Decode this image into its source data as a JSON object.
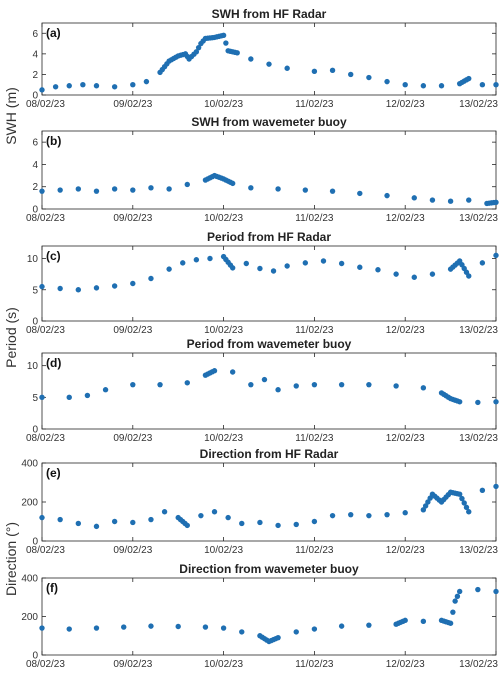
{
  "figure": {
    "ylabels": [
      {
        "text": "SWH (m)",
        "panels": [
          0,
          1
        ]
      },
      {
        "text": "Period (s)",
        "panels": [
          2,
          3
        ]
      },
      {
        "text": "Direction (°)",
        "panels": [
          4,
          5
        ]
      }
    ]
  },
  "chart_data": [
    {
      "type": "scatter",
      "label": "(a)",
      "title": "SWH from HF Radar",
      "x_tick_labels": [
        "08/02/23",
        "09/02/23",
        "10/02/23",
        "11/02/23",
        "12/02/23",
        "13/02/23"
      ],
      "xlim": [
        0,
        5
      ],
      "ylim": [
        0,
        7
      ],
      "yticks": [
        0,
        2,
        4,
        6
      ],
      "color": "#1f6fb2",
      "series": [
        {
          "points": [
            [
              0.0,
              0.5
            ],
            [
              0.15,
              0.8
            ],
            [
              0.3,
              0.9
            ],
            [
              0.45,
              1.0
            ],
            [
              0.6,
              0.9
            ],
            [
              0.8,
              0.8
            ],
            [
              1.0,
              1.0
            ],
            [
              1.15,
              1.3
            ],
            [
              1.3,
              2.2
            ],
            [
              1.4,
              3.3
            ],
            [
              1.5,
              3.8
            ],
            [
              1.58,
              4.0
            ],
            [
              1.62,
              3.5
            ],
            [
              1.7,
              4.2
            ],
            [
              1.75,
              5.0
            ],
            [
              1.8,
              5.5
            ],
            [
              1.9,
              5.6
            ],
            [
              2.0,
              5.8
            ],
            [
              2.05,
              4.3
            ],
            [
              2.15,
              4.1
            ],
            [
              2.3,
              3.5
            ],
            [
              2.5,
              3.0
            ],
            [
              2.7,
              2.6
            ],
            [
              3.0,
              2.3
            ],
            [
              3.2,
              2.4
            ],
            [
              3.4,
              2.0
            ],
            [
              3.6,
              1.7
            ],
            [
              3.8,
              1.3
            ],
            [
              4.0,
              1.0
            ],
            [
              4.2,
              0.9
            ],
            [
              4.4,
              0.9
            ],
            [
              4.6,
              1.1
            ],
            [
              4.7,
              1.6
            ],
            [
              4.85,
              1.0
            ],
            [
              5.0,
              1.0
            ]
          ]
        }
      ]
    },
    {
      "type": "scatter",
      "label": "(b)",
      "title": "SWH from wavemeter buoy",
      "x_tick_labels": [
        "08/02/23",
        "09/02/23",
        "10/02/23",
        "11/02/23",
        "12/02/23",
        "13/02/23"
      ],
      "xlim": [
        0,
        5
      ],
      "ylim": [
        0,
        7
      ],
      "yticks": [
        0,
        2,
        4,
        6
      ],
      "color": "#1f6fb2",
      "series": [
        {
          "points": [
            [
              0.0,
              1.6
            ],
            [
              0.2,
              1.7
            ],
            [
              0.4,
              1.8
            ],
            [
              0.6,
              1.6
            ],
            [
              0.8,
              1.8
            ],
            [
              1.0,
              1.7
            ],
            [
              1.2,
              1.9
            ],
            [
              1.4,
              1.8
            ],
            [
              1.6,
              2.2
            ],
            [
              1.8,
              2.6
            ],
            [
              1.9,
              3.0
            ],
            [
              2.0,
              2.7
            ],
            [
              2.1,
              2.3
            ],
            [
              2.3,
              1.9
            ],
            [
              2.6,
              1.8
            ],
            [
              2.9,
              1.7
            ],
            [
              3.2,
              1.6
            ],
            [
              3.5,
              1.4
            ],
            [
              3.8,
              1.2
            ],
            [
              4.1,
              1.0
            ],
            [
              4.3,
              0.8
            ],
            [
              4.5,
              0.7
            ],
            [
              4.7,
              0.8
            ],
            [
              4.9,
              0.5
            ],
            [
              5.0,
              0.6
            ]
          ]
        }
      ]
    },
    {
      "type": "scatter",
      "label": "(c)",
      "title": "Period from HF Radar",
      "x_tick_labels": [
        "08/02/23",
        "09/02/23",
        "10/02/23",
        "11/02/23",
        "12/02/23",
        "13/02/23"
      ],
      "xlim": [
        0,
        5
      ],
      "ylim": [
        0,
        12
      ],
      "yticks": [
        0,
        5,
        10
      ],
      "color": "#1f6fb2",
      "series": [
        {
          "points": [
            [
              0.0,
              5.5
            ],
            [
              0.2,
              5.2
            ],
            [
              0.4,
              5.0
            ],
            [
              0.6,
              5.3
            ],
            [
              0.8,
              5.6
            ],
            [
              1.0,
              6.0
            ],
            [
              1.2,
              6.8
            ],
            [
              1.4,
              8.3
            ],
            [
              1.55,
              9.3
            ],
            [
              1.7,
              9.8
            ],
            [
              1.85,
              10.0
            ],
            [
              2.0,
              10.3
            ],
            [
              2.1,
              8.5
            ],
            [
              2.25,
              9.2
            ],
            [
              2.4,
              8.4
            ],
            [
              2.55,
              8.0
            ],
            [
              2.7,
              8.8
            ],
            [
              2.9,
              9.3
            ],
            [
              3.1,
              9.6
            ],
            [
              3.3,
              9.2
            ],
            [
              3.5,
              8.6
            ],
            [
              3.7,
              8.2
            ],
            [
              3.9,
              7.5
            ],
            [
              4.1,
              7.0
            ],
            [
              4.3,
              7.5
            ],
            [
              4.5,
              8.3
            ],
            [
              4.6,
              9.6
            ],
            [
              4.7,
              7.2
            ],
            [
              4.85,
              9.3
            ],
            [
              5.0,
              10.5
            ]
          ]
        }
      ]
    },
    {
      "type": "scatter",
      "label": "(d)",
      "title": "Period from wavemeter buoy",
      "x_tick_labels": [
        "08/02/23",
        "09/02/23",
        "10/02/23",
        "11/02/23",
        "12/02/23",
        "13/02/23"
      ],
      "xlim": [
        0,
        5
      ],
      "ylim": [
        0,
        12
      ],
      "yticks": [
        0,
        5,
        10
      ],
      "color": "#1f6fb2",
      "series": [
        {
          "points": [
            [
              0.0,
              5.0
            ],
            [
              0.3,
              5.0
            ],
            [
              0.5,
              5.3
            ],
            [
              0.7,
              6.2
            ],
            [
              1.0,
              7.0
            ],
            [
              1.3,
              7.0
            ],
            [
              1.6,
              7.3
            ],
            [
              1.8,
              8.5
            ],
            [
              1.9,
              9.2
            ],
            [
              2.1,
              9.0
            ],
            [
              2.3,
              7.0
            ],
            [
              2.45,
              7.8
            ],
            [
              2.6,
              6.2
            ],
            [
              2.8,
              6.8
            ],
            [
              3.0,
              7.0
            ],
            [
              3.3,
              7.0
            ],
            [
              3.6,
              7.0
            ],
            [
              3.9,
              6.8
            ],
            [
              4.2,
              6.5
            ],
            [
              4.4,
              5.7
            ],
            [
              4.5,
              4.8
            ],
            [
              4.6,
              4.3
            ],
            [
              4.8,
              4.2
            ],
            [
              5.0,
              4.3
            ]
          ]
        }
      ]
    },
    {
      "type": "scatter",
      "label": "(e)",
      "title": "Direction from HF Radar",
      "x_tick_labels": [
        "08/02/23",
        "09/02/23",
        "10/02/23",
        "11/02/23",
        "12/02/23",
        "13/02/23"
      ],
      "xlim": [
        0,
        5
      ],
      "ylim": [
        0,
        400
      ],
      "yticks": [
        0,
        200,
        400
      ],
      "color": "#1f6fb2",
      "series": [
        {
          "points": [
            [
              0.0,
              120
            ],
            [
              0.2,
              110
            ],
            [
              0.4,
              90
            ],
            [
              0.6,
              75
            ],
            [
              0.8,
              100
            ],
            [
              1.0,
              95
            ],
            [
              1.2,
              110
            ],
            [
              1.35,
              150
            ],
            [
              1.5,
              120
            ],
            [
              1.6,
              80
            ],
            [
              1.75,
              130
            ],
            [
              1.9,
              150
            ],
            [
              2.05,
              120
            ],
            [
              2.2,
              90
            ],
            [
              2.4,
              95
            ],
            [
              2.6,
              80
            ],
            [
              2.8,
              85
            ],
            [
              3.0,
              100
            ],
            [
              3.2,
              130
            ],
            [
              3.4,
              135
            ],
            [
              3.6,
              130
            ],
            [
              3.8,
              135
            ],
            [
              4.0,
              145
            ],
            [
              4.2,
              160
            ],
            [
              4.3,
              240
            ],
            [
              4.4,
              200
            ],
            [
              4.5,
              250
            ],
            [
              4.6,
              240
            ],
            [
              4.7,
              150
            ],
            [
              4.85,
              260
            ],
            [
              5.0,
              280
            ]
          ]
        }
      ]
    },
    {
      "type": "scatter",
      "label": "(f)",
      "title": "Direction from wavemeter buoy",
      "x_tick_labels": [
        "08/02/23",
        "09/02/23",
        "10/02/23",
        "11/02/23",
        "12/02/23",
        "13/02/23"
      ],
      "xlim": [
        0,
        5
      ],
      "ylim": [
        0,
        400
      ],
      "yticks": [
        0,
        200,
        400
      ],
      "color": "#1f6fb2",
      "series": [
        {
          "points": [
            [
              0.0,
              140
            ],
            [
              0.3,
              135
            ],
            [
              0.6,
              140
            ],
            [
              0.9,
              145
            ],
            [
              1.2,
              150
            ],
            [
              1.5,
              148
            ],
            [
              1.8,
              145
            ],
            [
              2.0,
              140
            ],
            [
              2.2,
              120
            ],
            [
              2.4,
              100
            ],
            [
              2.5,
              70
            ],
            [
              2.6,
              90
            ],
            [
              2.8,
              120
            ],
            [
              3.0,
              135
            ],
            [
              3.3,
              150
            ],
            [
              3.6,
              155
            ],
            [
              3.9,
              160
            ],
            [
              4.0,
              180
            ],
            [
              4.2,
              175
            ],
            [
              4.4,
              180
            ],
            [
              4.5,
              165
            ],
            [
              4.55,
              280
            ],
            [
              4.6,
              330
            ],
            [
              4.8,
              340
            ],
            [
              5.0,
              330
            ]
          ]
        }
      ]
    }
  ]
}
